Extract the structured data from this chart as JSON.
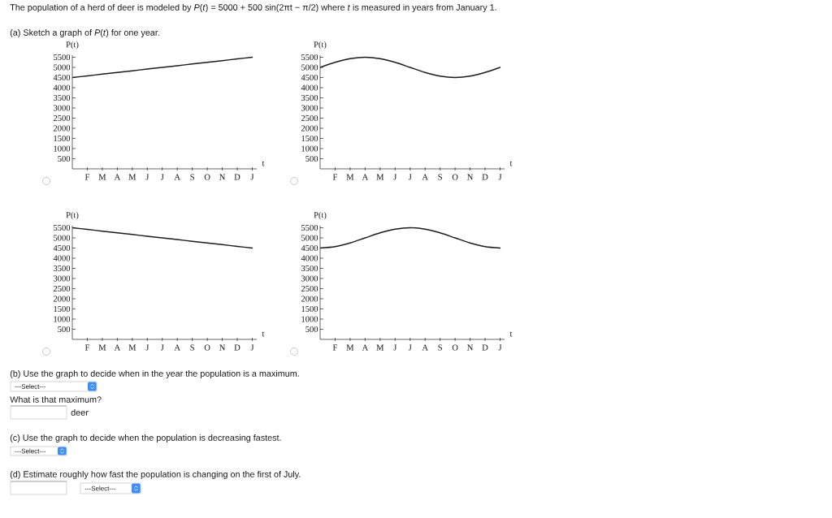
{
  "chart_data": [
    {
      "type": "other",
      "title": "The population of a herd of deer is modeled by *P*(*t*) = 5000 + 500 sin(2πt − π/2) where *t* is measured in years from January 1.",
      "subtitle": "(a) Sketch a graph of *P*(*t*) for one year."
    },
    {
      "type": "line",
      "xlabel": "t",
      "ylabel": "P(t)",
      "categories": [
        null,
        "F",
        "M",
        "A",
        "M",
        "J",
        "J",
        "A",
        "S",
        "O",
        "N",
        "D",
        "J"
      ],
      "values": [
        4500,
        4580,
        4670,
        4750,
        4830,
        4920,
        5000,
        5080,
        5170,
        5250,
        5330,
        5420,
        5500
      ],
      "color": "#1a1a1a",
      "ylim": [
        0,
        5600
      ],
      "yticks": [
        500,
        1000,
        1500,
        2000,
        2500,
        3000,
        3500,
        4000,
        4500,
        5000,
        5500
      ]
    },
    {
      "type": "line",
      "xlabel": "t",
      "ylabel": "P(t)",
      "categories": [
        null,
        "F",
        "M",
        "A",
        "M",
        "J",
        "J",
        "A",
        "S",
        "O",
        "N",
        "D",
        "J"
      ],
      "values": [
        5000,
        5250,
        5430,
        5500,
        5430,
        5250,
        5000,
        4750,
        4570,
        4500,
        4570,
        4750,
        5000
      ],
      "color": "#1a1a1a",
      "ylim": [
        0,
        5600
      ],
      "yticks": [
        500,
        1000,
        1500,
        2000,
        2500,
        3000,
        3500,
        4000,
        4500,
        5000,
        5500
      ]
    },
    {
      "type": "line",
      "xlabel": "t",
      "ylabel": "P(t)",
      "categories": [
        null,
        "F",
        "M",
        "A",
        "M",
        "J",
        "J",
        "A",
        "S",
        "O",
        "N",
        "D",
        "J"
      ],
      "values": [
        5500,
        5420,
        5330,
        5250,
        5170,
        5080,
        5000,
        4920,
        4830,
        4750,
        4670,
        4580,
        4500
      ],
      "color": "#1a1a1a",
      "ylim": [
        0,
        5600
      ],
      "yticks": [
        500,
        1000,
        1500,
        2000,
        2500,
        3000,
        3500,
        4000,
        4500,
        5000,
        5500
      ]
    },
    {
      "type": "line",
      "xlabel": "t",
      "ylabel": "P(t)",
      "categories": [
        null,
        "F",
        "M",
        "A",
        "M",
        "J",
        "J",
        "A",
        "S",
        "O",
        "N",
        "D",
        "J"
      ],
      "values": [
        4500,
        4570,
        4750,
        5000,
        5250,
        5430,
        5500,
        5430,
        5250,
        5000,
        4750,
        4570,
        4500
      ],
      "color": "#1a1a1a",
      "ylim": [
        0,
        5600
      ],
      "yticks": [
        500,
        1000,
        1500,
        2000,
        2500,
        3000,
        3500,
        4000,
        4500,
        5000,
        5500
      ]
    },
    {
      "type": "other",
      "annotations": [
        "(b) Use the graph to decide when in the year the population is a maximum.",
        "---Select---",
        "What is that maximum?",
        "deer",
        "(c) Use the graph to decide when the population is decreasing fastest.",
        "---Select---",
        "(d) Estimate roughly how fast the population is changing on the first of July.",
        "---Select---"
      ]
    }
  ]
}
